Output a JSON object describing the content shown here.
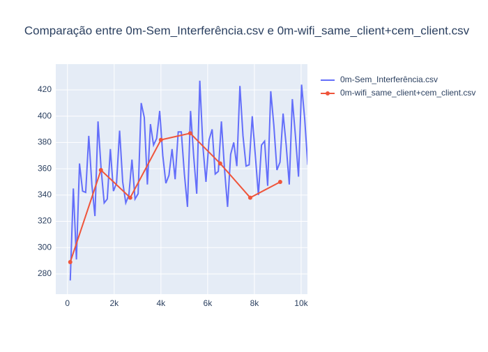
{
  "chart_data": {
    "type": "line",
    "title": "Comparação entre 0m-Sem_Interferência.csv e 0m-wifi_same_client+cem_client.csv",
    "xlim": [
      -500,
      10270
    ],
    "ylim": [
      264.6,
      439.6
    ],
    "xticks": [
      0,
      {
        "value": 2000,
        "label": "2k"
      },
      {
        "value": 4000,
        "label": "4k"
      },
      {
        "value": 6000,
        "label": "6k"
      },
      {
        "value": 8000,
        "label": "8k"
      },
      {
        "value": 10000,
        "label": "10k"
      }
    ],
    "yticks": [
      280,
      300,
      320,
      340,
      360,
      380,
      400,
      420
    ],
    "grid": true,
    "legend": "right",
    "series": [
      {
        "name": "0m-Sem_Interferência.csv",
        "color": "#636efa",
        "markers": false,
        "x": [
          120,
          252,
          384,
          516,
          648,
          780,
          912,
          1044,
          1176,
          1308,
          1440,
          1572,
          1704,
          1836,
          1968,
          2100,
          2232,
          2364,
          2496,
          2628,
          2760,
          2892,
          3024,
          3156,
          3288,
          3420,
          3552,
          3684,
          3816,
          3948,
          4080,
          4212,
          4344,
          4476,
          4608,
          4740,
          4872,
          5004,
          5136,
          5268,
          5400,
          5532,
          5664,
          5796,
          5928,
          6060,
          6192,
          6324,
          6456,
          6588,
          6720,
          6852,
          6984,
          7116,
          7248,
          7380,
          7512,
          7644,
          7776,
          7908,
          8040,
          8172,
          8304,
          8436,
          8568,
          8700,
          8832,
          8964,
          9096,
          9228,
          9360,
          9492,
          9624,
          9756,
          9888,
          10020,
          10152,
          10284
        ],
        "values": [
          275,
          345,
          291,
          364,
          343,
          342,
          385,
          348,
          324,
          396,
          360,
          334,
          337,
          375,
          343,
          349,
          389,
          350,
          334,
          340,
          367,
          337,
          341,
          410,
          399,
          348,
          394,
          378,
          383,
          404,
          370,
          349,
          355,
          375,
          352,
          388,
          388,
          356,
          331,
          404,
          370,
          341,
          427,
          377,
          350,
          382,
          390,
          356,
          358,
          396,
          360,
          331,
          371,
          380,
          362,
          423,
          385,
          362,
          363,
          400,
          370,
          340,
          378,
          381,
          347,
          419,
          393,
          359,
          365,
          402,
          378,
          348,
          413,
          385,
          354,
          424,
          398,
          363
        ]
      },
      {
        "name": "0m-wifi_same_client+cem_client.csv",
        "color": "#EF553B",
        "markers": true,
        "x": [
          119,
          1433,
          2687,
          4000,
          5254,
          6537,
          7821,
          9104
        ],
        "values": [
          289,
          359,
          338,
          382,
          387,
          364,
          338,
          350
        ]
      }
    ]
  }
}
